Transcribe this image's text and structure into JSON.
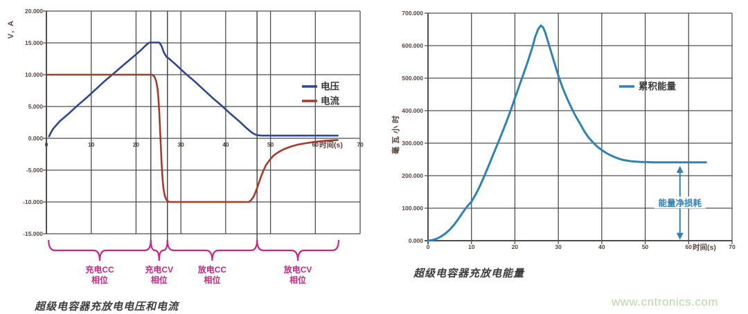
{
  "page": {
    "watermark": "www.cntronics.com"
  },
  "colors": {
    "grid": "#4d4d4d",
    "axis_text": "#55423a",
    "voltage": "#2e4690",
    "current": "#a63a2a",
    "energy": "#2e82b4",
    "annotation": "#2e82b4",
    "phase": "#c82682",
    "legend_text": "#3a3a3a",
    "title_text": "#3c3c3c",
    "watermark": "#b7db9e"
  },
  "chart_data": [
    {
      "id": "voltage-current",
      "type": "line",
      "title": "超级电容器充放电电压和电流",
      "xlabel": "时间(s)",
      "ylabel": "V, A",
      "xlim": [
        0,
        70
      ],
      "ylim": [
        -15,
        20
      ],
      "grid": true,
      "legend_position": "right-middle",
      "x_ticks": {
        "values": [
          0,
          10,
          20,
          30,
          40,
          50,
          60,
          70
        ],
        "labels": [
          "0",
          "10",
          "20",
          "30",
          "40",
          "50",
          "60",
          "70"
        ]
      },
      "y_ticks": {
        "values": [
          20,
          15,
          10,
          5,
          0,
          -5,
          -10,
          -15
        ],
        "labels": [
          "20.000",
          "15.000",
          "10.000",
          "5.000",
          "0.000",
          "-5.000",
          "-10.000",
          "-15.000"
        ]
      },
      "series": [
        {
          "key": "voltage",
          "name": "电压",
          "color": "#2e4690",
          "points": [
            [
              0.6,
              0.3
            ],
            [
              1,
              0.9
            ],
            [
              1.5,
              1.5
            ],
            [
              2,
              1.9
            ],
            [
              3,
              2.7
            ],
            [
              4,
              3.3
            ],
            [
              5,
              3.9
            ],
            [
              7,
              5.2
            ],
            [
              9,
              6.4
            ],
            [
              11,
              7.7
            ],
            [
              13,
              9.0
            ],
            [
              15,
              10.2
            ],
            [
              17,
              11.4
            ],
            [
              19,
              12.6
            ],
            [
              21,
              13.8
            ],
            [
              22.3,
              14.7
            ],
            [
              23,
              15.05
            ],
            [
              25.2,
              15.05
            ],
            [
              25.7,
              14.5
            ],
            [
              26.2,
              13.5
            ],
            [
              26.8,
              12.8
            ],
            [
              27.4,
              12.5
            ],
            [
              29,
              11.5
            ],
            [
              31,
              10.2
            ],
            [
              33,
              9.0
            ],
            [
              35,
              7.7
            ],
            [
              37,
              6.4
            ],
            [
              39,
              5.2
            ],
            [
              41,
              3.9
            ],
            [
              43,
              2.7
            ],
            [
              44.5,
              1.7
            ],
            [
              45.5,
              1.1
            ],
            [
              46.3,
              0.7
            ],
            [
              47,
              0.5
            ],
            [
              48,
              0.42
            ],
            [
              52,
              0.42
            ],
            [
              56,
              0.42
            ],
            [
              60,
              0.42
            ],
            [
              65,
              0.42
            ]
          ]
        },
        {
          "key": "current",
          "name": "电流",
          "color": "#a63a2a",
          "points": [
            [
              0.3,
              10
            ],
            [
              5,
              10
            ],
            [
              10,
              10
            ],
            [
              15,
              10
            ],
            [
              20,
              10
            ],
            [
              23.6,
              10
            ],
            [
              24.1,
              9.7
            ],
            [
              24.5,
              9.0
            ],
            [
              24.8,
              7.8
            ],
            [
              25,
              6.2
            ],
            [
              25.2,
              3.8
            ],
            [
              25.45,
              0
            ],
            [
              25.7,
              -3.8
            ],
            [
              25.9,
              -6.2
            ],
            [
              26.1,
              -7.8
            ],
            [
              26.4,
              -9.0
            ],
            [
              26.8,
              -9.7
            ],
            [
              27.3,
              -10
            ],
            [
              30,
              -10
            ],
            [
              35,
              -10
            ],
            [
              40,
              -10
            ],
            [
              45.2,
              -10
            ],
            [
              45.7,
              -9.7
            ],
            [
              46.2,
              -9.2
            ],
            [
              46.7,
              -8.4
            ],
            [
              47.2,
              -7.4
            ],
            [
              47.8,
              -6.2
            ],
            [
              48.4,
              -5.1
            ],
            [
              49,
              -4.2
            ],
            [
              49.8,
              -3.4
            ],
            [
              50.7,
              -2.7
            ],
            [
              51.7,
              -2.2
            ],
            [
              53,
              -1.7
            ],
            [
              54.5,
              -1.3
            ],
            [
              56,
              -1.0
            ],
            [
              58,
              -0.75
            ],
            [
              60,
              -0.55
            ],
            [
              62,
              -0.4
            ],
            [
              64,
              -0.3
            ],
            [
              65,
              -0.27
            ]
          ]
        }
      ],
      "phase_boundaries": [
        23.3,
        27,
        47
      ],
      "phases": [
        {
          "label_lines": [
            "充电CC",
            "相位"
          ],
          "from": 0.5,
          "to": 23.3
        },
        {
          "label_lines": [
            "充电CV",
            "相位"
          ],
          "from": 23.3,
          "to": 27
        },
        {
          "label_lines": [
            "放电CC",
            "相位"
          ],
          "from": 27,
          "to": 47
        },
        {
          "label_lines": [
            "放电CV",
            "相位"
          ],
          "from": 47,
          "to": 65.2
        }
      ]
    },
    {
      "id": "energy",
      "type": "line",
      "title": "超级电容器充放电能量",
      "xlabel": "时间(s)",
      "ylabel": "毫瓦小时",
      "xlim": [
        0,
        70
      ],
      "ylim": [
        0,
        700
      ],
      "grid": true,
      "legend_position": "right-upper",
      "x_ticks": {
        "values": [
          0,
          10,
          20,
          30,
          40,
          50,
          60,
          70
        ],
        "labels": [
          "0",
          "10",
          "20",
          "30",
          "40",
          "50",
          "60",
          "70"
        ]
      },
      "y_ticks": {
        "values": [
          700,
          600,
          500,
          400,
          300,
          200,
          100,
          0
        ],
        "labels": [
          "700.000",
          "600.000",
          "500.000",
          "400.000",
          "300.000",
          "200.000",
          "100.000",
          "0.000"
        ]
      },
      "series": [
        {
          "key": "energy",
          "name": "累积能量",
          "color": "#2e82b4",
          "points": [
            [
              0,
              0
            ],
            [
              1,
              2
            ],
            [
              2,
              6
            ],
            [
              3,
              13
            ],
            [
              4,
              22
            ],
            [
              5,
              34
            ],
            [
              6,
              49
            ],
            [
              7,
              67
            ],
            [
              8,
              87
            ],
            [
              9,
              105
            ],
            [
              10,
              120
            ],
            [
              11,
              143
            ],
            [
              12,
              170
            ],
            [
              13,
              200
            ],
            [
              14,
              232
            ],
            [
              15,
              265
            ],
            [
              16,
              297
            ],
            [
              17,
              330
            ],
            [
              18,
              364
            ],
            [
              19,
              400
            ],
            [
              20,
              438
            ],
            [
              21,
              476
            ],
            [
              22,
              514
            ],
            [
              23,
              552
            ],
            [
              24,
              594
            ],
            [
              24.7,
              628
            ],
            [
              25.4,
              652
            ],
            [
              26,
              662
            ],
            [
              26.5,
              656
            ],
            [
              27,
              640
            ],
            [
              28,
              596
            ],
            [
              29,
              551
            ],
            [
              30,
              508
            ],
            [
              31,
              470
            ],
            [
              32,
              438
            ],
            [
              33,
              409
            ],
            [
              34,
              383
            ],
            [
              35,
              360
            ],
            [
              36,
              336
            ],
            [
              37,
              317
            ],
            [
              38,
              302
            ],
            [
              39,
              289
            ],
            [
              40,
              279
            ],
            [
              41,
              270
            ],
            [
              42,
              263
            ],
            [
              43,
              257
            ],
            [
              44,
              252
            ],
            [
              45,
              248
            ],
            [
              46,
              246
            ],
            [
              47,
              244
            ],
            [
              48,
              243
            ],
            [
              49,
              242
            ],
            [
              50,
              242
            ],
            [
              52,
              241
            ],
            [
              54,
              241
            ],
            [
              57,
              241
            ],
            [
              60,
              241
            ],
            [
              64,
              241
            ]
          ]
        }
      ],
      "annotation": {
        "label": "能量净损耗",
        "t": 58,
        "from_value": 5,
        "to_value": 228
      }
    }
  ]
}
